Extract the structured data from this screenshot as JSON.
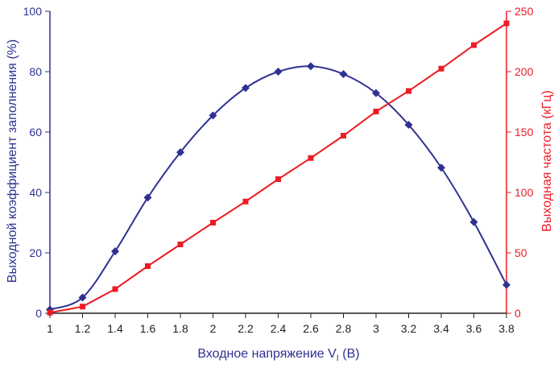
{
  "chart_data": {
    "type": "line",
    "xlabel": "Входное напряжение V",
    "xlabel_sub": "I",
    "xlabel_suffix": " (В)",
    "ylabel_left": "Выходной коэффициент заполнения (%)",
    "ylabel_right": "Выходная частота (кГц)",
    "xlim": [
      1,
      3.8
    ],
    "ylim_left": [
      0,
      100
    ],
    "ylim_right": [
      0,
      250
    ],
    "x_ticks": [
      "1",
      "1.2",
      "1.4",
      "1.6",
      "1.8",
      "2",
      "2.2",
      "2.4",
      "2.6",
      "2.8",
      "3",
      "3.2",
      "3.4",
      "3.6",
      "3.8"
    ],
    "y_left_ticks": [
      "0",
      "20",
      "40",
      "60",
      "80",
      "100"
    ],
    "y_right_ticks": [
      "0",
      "50",
      "100",
      "150",
      "200",
      "250"
    ],
    "grid": false,
    "series": [
      {
        "axis": "left",
        "marker": "diamond",
        "color": "#2e3192",
        "x": [
          1,
          1.2,
          1.4,
          1.6,
          1.8,
          2,
          2.2,
          2.4,
          2.6,
          2.8,
          3,
          3.2,
          3.4,
          3.6,
          3.8
        ],
        "y": [
          1.2,
          5.2,
          20.5,
          38.3,
          53.3,
          65.5,
          74.6,
          80.0,
          81.8,
          79.2,
          72.9,
          62.4,
          48.2,
          30.2,
          9.4
        ]
      },
      {
        "axis": "right",
        "marker": "square",
        "color": "#ed1c24",
        "x": [
          1,
          1.2,
          1.4,
          1.6,
          1.8,
          2,
          2.2,
          2.4,
          2.6,
          2.8,
          3,
          3.2,
          3.4,
          3.6,
          3.8
        ],
        "y": [
          0.5,
          5.5,
          20,
          39,
          57,
          75,
          92.5,
          111,
          128.5,
          147,
          167,
          184,
          202.5,
          222,
          240
        ]
      }
    ]
  }
}
